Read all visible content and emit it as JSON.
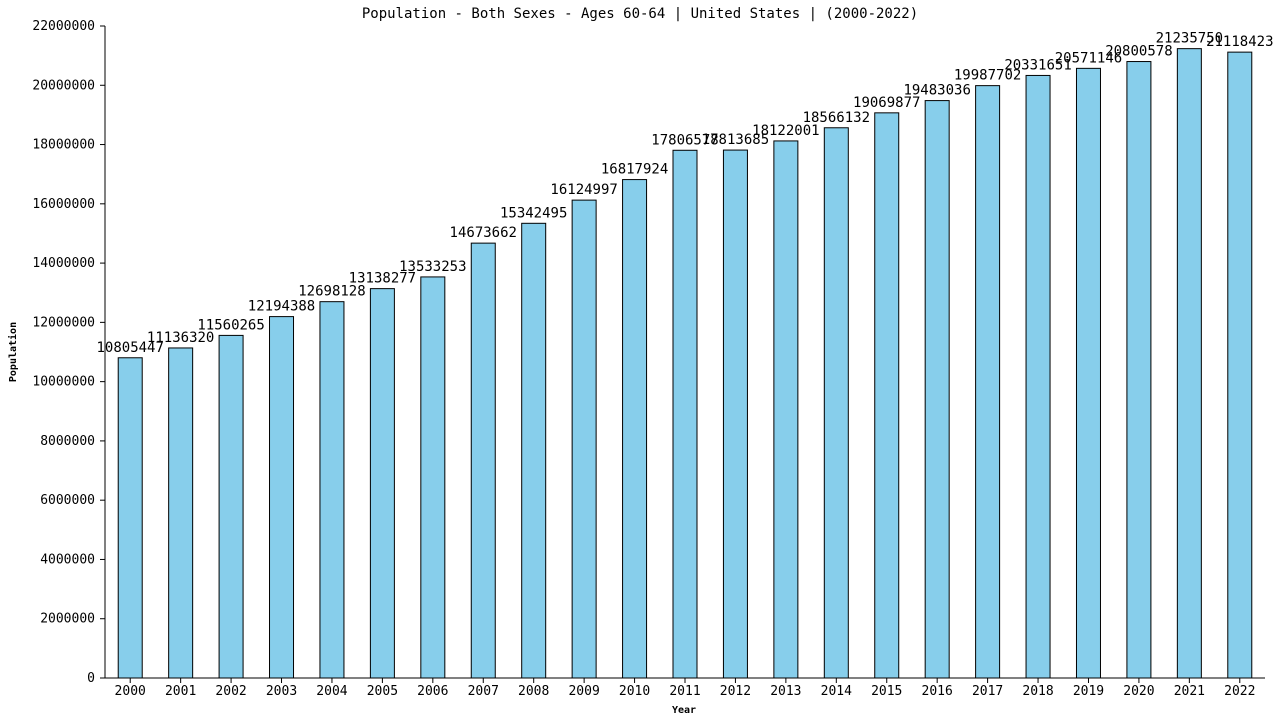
{
  "chart_data": {
    "type": "bar",
    "title": "Population - Both Sexes - Ages 60-64 | United States |  (2000-2022)",
    "xlabel": "Year",
    "ylabel": "Population",
    "ylim": [
      0,
      22000000
    ],
    "yticks": [
      0,
      2000000,
      4000000,
      6000000,
      8000000,
      10000000,
      12000000,
      14000000,
      16000000,
      18000000,
      20000000,
      22000000
    ],
    "ytick_labels": [
      "0",
      "2000000",
      "4000000",
      "6000000",
      "8000000",
      "10000000",
      "12000000",
      "14000000",
      "16000000",
      "18000000",
      "20000000",
      "22000000"
    ],
    "grid": false,
    "bar_color": "#87ceeb",
    "categories": [
      "2000",
      "2001",
      "2002",
      "2003",
      "2004",
      "2005",
      "2006",
      "2007",
      "2008",
      "2009",
      "2010",
      "2011",
      "2012",
      "2013",
      "2014",
      "2015",
      "2016",
      "2017",
      "2018",
      "2019",
      "2020",
      "2021",
      "2022"
    ],
    "values": [
      10805447,
      11136320,
      11560265,
      12194388,
      12698128,
      13138277,
      13533253,
      14673662,
      15342495,
      16124997,
      16817924,
      17806578,
      17813685,
      18122001,
      18566132,
      19069877,
      19483036,
      19987702,
      20331651,
      20571146,
      20800578,
      21235750,
      21118423
    ],
    "value_labels": [
      "10805447",
      "11136320",
      "11560265",
      "12194388",
      "12698128",
      "13138277",
      "13533253",
      "14673662",
      "15342495",
      "16124997",
      "16817924",
      "17806578",
      "17813685",
      "18122001",
      "18566132",
      "19069877",
      "19483036",
      "19987702",
      "20331651",
      "20571146",
      "20800578",
      "21235750",
      "21118423"
    ]
  }
}
